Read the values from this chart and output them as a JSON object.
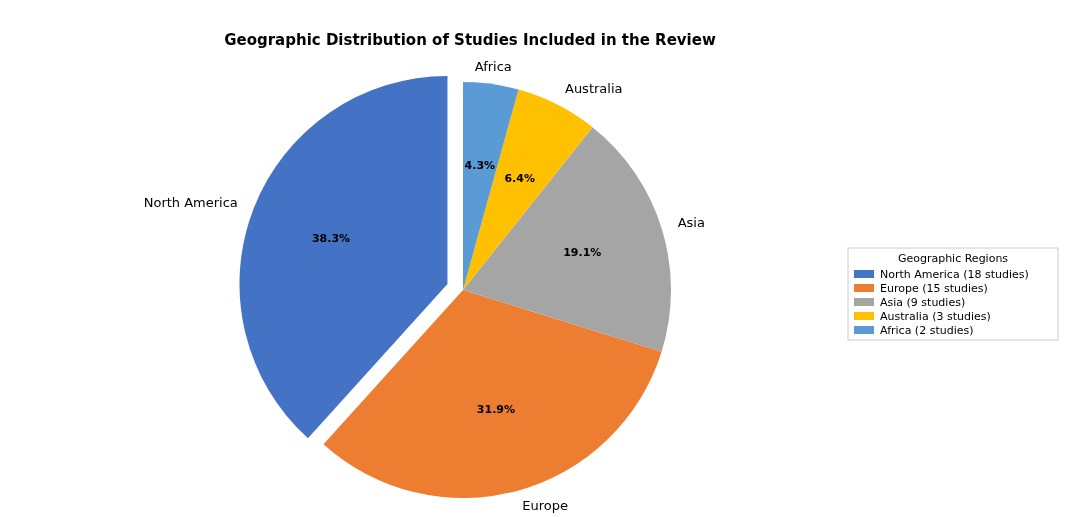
{
  "chart_data": {
    "type": "pie",
    "title": "Geographic Distribution of Studies Included in the Review",
    "categories": [
      "North America",
      "Europe",
      "Asia",
      "Australia",
      "Africa"
    ],
    "values": [
      38.3,
      31.9,
      19.1,
      6.4,
      4.3
    ],
    "value_labels": [
      "38.3%",
      "31.9%",
      "19.1%",
      "6.4%",
      "4.3%"
    ],
    "colors": [
      "#4472c4",
      "#ed7d31",
      "#a5a5a5",
      "#ffc000",
      "#5b9bd5"
    ],
    "legend_title": "Geographic Regions",
    "annotations": [
      "North America (18 studies)",
      "Europe (15 studies)",
      "Asia (9 studies)",
      "Australia (3 studies)",
      "Africa (2 studies)"
    ]
  }
}
